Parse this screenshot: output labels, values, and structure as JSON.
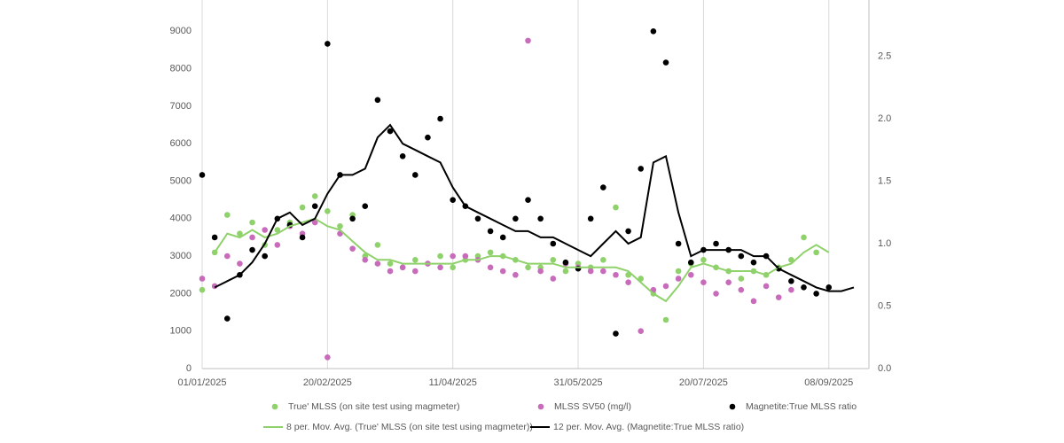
{
  "chart_data": {
    "type": "combo",
    "x": [
      "2025-01-01",
      "2025-01-06",
      "2025-01-11",
      "2025-01-16",
      "2025-01-21",
      "2025-01-26",
      "2025-01-31",
      "2025-02-05",
      "2025-02-10",
      "2025-02-15",
      "2025-02-20",
      "2025-02-25",
      "2025-03-02",
      "2025-03-07",
      "2025-03-12",
      "2025-03-17",
      "2025-03-22",
      "2025-03-27",
      "2025-04-01",
      "2025-04-06",
      "2025-04-11",
      "2025-04-16",
      "2025-04-21",
      "2025-04-26",
      "2025-05-01",
      "2025-05-06",
      "2025-05-11",
      "2025-05-16",
      "2025-05-21",
      "2025-05-26",
      "2025-05-31",
      "2025-06-05",
      "2025-06-10",
      "2025-06-15",
      "2025-06-20",
      "2025-06-25",
      "2025-06-30",
      "2025-07-05",
      "2025-07-10",
      "2025-07-15",
      "2025-07-20",
      "2025-07-25",
      "2025-07-30",
      "2025-08-04",
      "2025-08-09",
      "2025-08-14",
      "2025-08-19",
      "2025-08-24",
      "2025-08-29",
      "2025-09-03",
      "2025-09-08",
      "2025-09-13",
      "2025-09-18"
    ],
    "xlim": [
      "2025-01-01",
      "2025-09-24"
    ],
    "xticks": [
      {
        "value": "2025-01-01",
        "label": "01/01/2025"
      },
      {
        "value": "2025-02-20",
        "label": "20/02/2025"
      },
      {
        "value": "2025-04-11",
        "label": "11/04/2025"
      },
      {
        "value": "2025-05-31",
        "label": "31/05/2025"
      },
      {
        "value": "2025-07-20",
        "label": "20/07/2025"
      },
      {
        "value": "2025-09-08",
        "label": "08/09/2025"
      }
    ],
    "ylim": [
      0,
      10000
    ],
    "yticks": [
      0,
      1000,
      2000,
      3000,
      4000,
      5000,
      6000,
      7000,
      8000,
      9000
    ],
    "y2lim": [
      0,
      3
    ],
    "y2ticks": [
      {
        "value": 0,
        "label": "0.0"
      },
      0.5,
      {
        "value": 1,
        "label": "1.0"
      },
      1.5,
      {
        "value": 2,
        "label": "2.0"
      },
      2.5
    ],
    "grid": "x",
    "series": [
      {
        "name": "True' MLSS (on site test using magmeter)",
        "type": "scatter",
        "color": "#8fd16a",
        "values": [
          2100,
          3100,
          4100,
          3600,
          3900,
          3300,
          3700,
          3900,
          4300,
          4600,
          4200,
          3800,
          4100,
          3000,
          3300,
          2800,
          2700,
          2900,
          2800,
          3000,
          2700,
          2900,
          3000,
          3100,
          3000,
          2900,
          2700,
          2700,
          2900,
          2600,
          2800,
          2700,
          2900,
          4300,
          2500,
          2400,
          2000,
          1300,
          2600,
          2800,
          2900,
          2700,
          2600,
          2400,
          2600,
          2500,
          2700,
          2900,
          3500,
          3100,
          null,
          null,
          null
        ]
      },
      {
        "name": "MLSS SV50 (mg/l)",
        "type": "scatter",
        "color": "#c86bbb",
        "values": [
          2400,
          2200,
          3000,
          2800,
          3500,
          3700,
          3300,
          3800,
          3600,
          3900,
          300,
          3600,
          3200,
          2900,
          2800,
          2600,
          2700,
          2600,
          2800,
          2700,
          3000,
          3000,
          2900,
          2700,
          2600,
          2500,
          8750,
          2600,
          2400,
          2800,
          2700,
          2600,
          2600,
          2500,
          2300,
          1000,
          2100,
          2200,
          2400,
          2500,
          2300,
          2000,
          2300,
          2100,
          1800,
          2200,
          1900,
          2100,
          null,
          null,
          null,
          null,
          null
        ]
      },
      {
        "name": "Magnetite:True MLSS ratio",
        "type": "scatter",
        "axis": "y2",
        "color": "#000000",
        "values": [
          1.55,
          1.05,
          0.4,
          0.75,
          0.95,
          0.9,
          1.2,
          1.15,
          1.05,
          1.3,
          2.6,
          1.55,
          1.2,
          1.3,
          2.15,
          1.9,
          1.7,
          1.55,
          1.85,
          2.0,
          1.35,
          1.3,
          1.2,
          1.1,
          1.05,
          1.2,
          1.35,
          1.2,
          1.0,
          0.85,
          0.8,
          1.2,
          1.45,
          0.28,
          1.1,
          1.6,
          2.7,
          2.45,
          1.0,
          0.85,
          0.95,
          1.0,
          0.95,
          0.9,
          0.85,
          0.9,
          0.8,
          0.7,
          0.65,
          0.6,
          0.65,
          null,
          null
        ]
      },
      {
        "name": "8 per. Mov. Avg. (True' MLSS (on site test using magmeter))",
        "type": "line",
        "color": "#8fd16a",
        "values": [
          null,
          3100,
          3600,
          3500,
          3700,
          3500,
          3600,
          3800,
          3900,
          4000,
          3800,
          3700,
          3400,
          3100,
          2900,
          2900,
          2800,
          2800,
          2800,
          2800,
          2800,
          2900,
          2900,
          3000,
          3000,
          2900,
          2800,
          2800,
          2800,
          2700,
          2700,
          2700,
          2700,
          2700,
          2600,
          2300,
          2000,
          1800,
          2200,
          2700,
          2800,
          2700,
          2600,
          2600,
          2600,
          2500,
          2700,
          2800,
          3100,
          3300,
          3100,
          null,
          null
        ]
      },
      {
        "name": "12 per. Mov. Avg. (Magnetite:True MLSS ratio)",
        "type": "line",
        "axis": "y2",
        "color": "#000000",
        "values": [
          null,
          0.65,
          0.7,
          0.75,
          0.85,
          1.0,
          1.2,
          1.25,
          1.15,
          1.2,
          1.4,
          1.55,
          1.55,
          1.6,
          1.85,
          1.95,
          1.8,
          1.75,
          1.7,
          1.65,
          1.45,
          1.3,
          1.25,
          1.2,
          1.15,
          1.1,
          1.1,
          1.05,
          1.05,
          1.0,
          0.95,
          0.9,
          1.0,
          1.1,
          1.0,
          1.05,
          1.65,
          1.7,
          1.25,
          0.9,
          0.95,
          0.95,
          0.95,
          0.95,
          0.9,
          0.9,
          0.8,
          0.75,
          0.7,
          0.65,
          0.62,
          0.62,
          0.65
        ]
      }
    ]
  }
}
